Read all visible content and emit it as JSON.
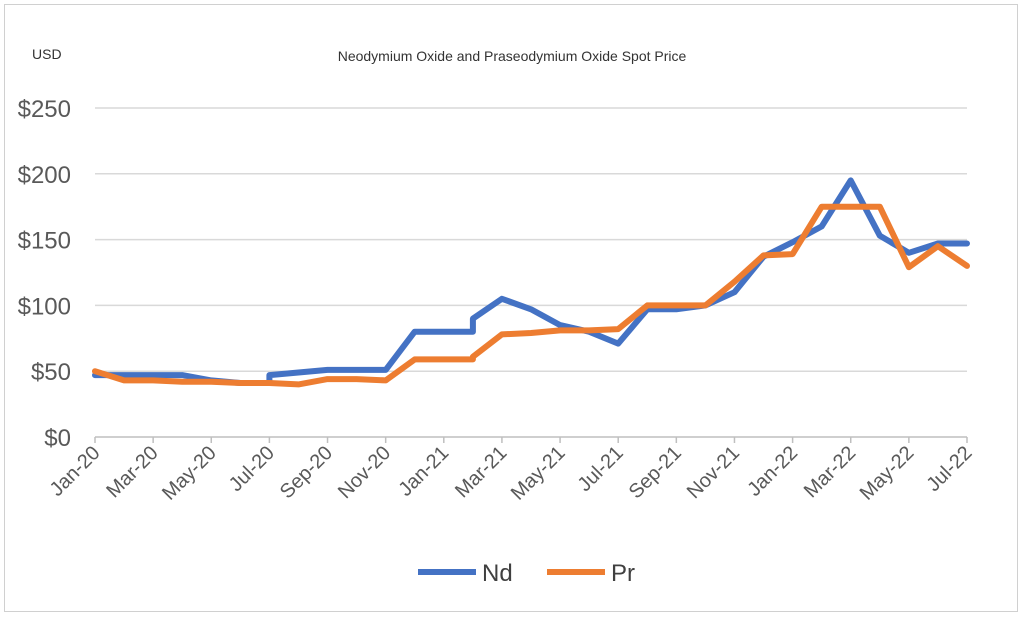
{
  "chart_data": {
    "type": "line",
    "title": "Neodymium Oxide and Praseodymium Oxide Spot Price",
    "ylabel": "USD",
    "ylim": [
      0,
      250
    ],
    "y_ticks": [
      {
        "value": 0,
        "label": "$0"
      },
      {
        "value": 50,
        "label": "$50"
      },
      {
        "value": 100,
        "label": "$100"
      },
      {
        "value": 150,
        "label": "$150"
      },
      {
        "value": 200,
        "label": "$200"
      },
      {
        "value": 250,
        "label": "$250"
      }
    ],
    "x_tick_labels": [
      "Jan-20",
      "Mar-20",
      "May-20",
      "Jul-20",
      "Sep-20",
      "Nov-20",
      "Jan-21",
      "Mar-21",
      "May-21",
      "Jul-21",
      "Sep-21",
      "Nov-21",
      "Jan-22",
      "Mar-22",
      "May-22",
      "Jul-22"
    ],
    "legend_position": "bottom",
    "grid": true,
    "series": [
      {
        "name": "Nd",
        "color": "#4472c4",
        "points": [
          [
            "Jan-20",
            47
          ],
          [
            "Feb-20",
            47
          ],
          [
            "Mar-20",
            47
          ],
          [
            "Apr-20",
            47
          ],
          [
            "May-20",
            43
          ],
          [
            "Jun-20",
            41
          ],
          [
            "Jul-20",
            41
          ],
          [
            "Jul-20",
            47
          ],
          [
            "Aug-20",
            49
          ],
          [
            "Sep-20",
            51
          ],
          [
            "Oct-20",
            51
          ],
          [
            "Nov-20",
            51
          ],
          [
            "Dec-20",
            80
          ],
          [
            "Jan-21",
            80
          ],
          [
            "Feb-21",
            80
          ],
          [
            "Feb-21",
            90
          ],
          [
            "Mar-21",
            105
          ],
          [
            "Apr-21",
            97
          ],
          [
            "May-21",
            85
          ],
          [
            "Jun-21",
            80
          ],
          [
            "Jul-21",
            71
          ],
          [
            "Aug-21",
            97
          ],
          [
            "Sep-21",
            97
          ],
          [
            "Oct-21",
            100
          ],
          [
            "Nov-21",
            110
          ],
          [
            "Dec-21",
            137
          ],
          [
            "Jan-22",
            148
          ],
          [
            "Feb-22",
            160
          ],
          [
            "Mar-22",
            195
          ],
          [
            "Apr-22",
            153
          ],
          [
            "May-22",
            140
          ],
          [
            "Jun-22",
            147
          ],
          [
            "Jul-22",
            147
          ]
        ]
      },
      {
        "name": "Pr",
        "color": "#ed7d31",
        "points": [
          [
            "Jan-20",
            50
          ],
          [
            "Feb-20",
            43
          ],
          [
            "Mar-20",
            43
          ],
          [
            "Apr-20",
            42
          ],
          [
            "May-20",
            42
          ],
          [
            "Jun-20",
            41
          ],
          [
            "Jul-20",
            41
          ],
          [
            "Aug-20",
            40
          ],
          [
            "Sep-20",
            44
          ],
          [
            "Oct-20",
            44
          ],
          [
            "Nov-20",
            43
          ],
          [
            "Dec-20",
            59
          ],
          [
            "Jan-21",
            59
          ],
          [
            "Feb-21",
            59
          ],
          [
            "Feb-21",
            61
          ],
          [
            "Mar-21",
            78
          ],
          [
            "Apr-21",
            79
          ],
          [
            "May-21",
            81
          ],
          [
            "Jun-21",
            81
          ],
          [
            "Jul-21",
            82
          ],
          [
            "Aug-21",
            100
          ],
          [
            "Sep-21",
            100
          ],
          [
            "Oct-21",
            100
          ],
          [
            "Nov-21",
            118
          ],
          [
            "Dec-21",
            138
          ],
          [
            "Jan-22",
            139
          ],
          [
            "Feb-22",
            175
          ],
          [
            "Mar-22",
            175
          ],
          [
            "Apr-22",
            175
          ],
          [
            "May-22",
            129
          ],
          [
            "Jun-22",
            145
          ],
          [
            "Jul-22",
            130
          ]
        ]
      }
    ]
  }
}
